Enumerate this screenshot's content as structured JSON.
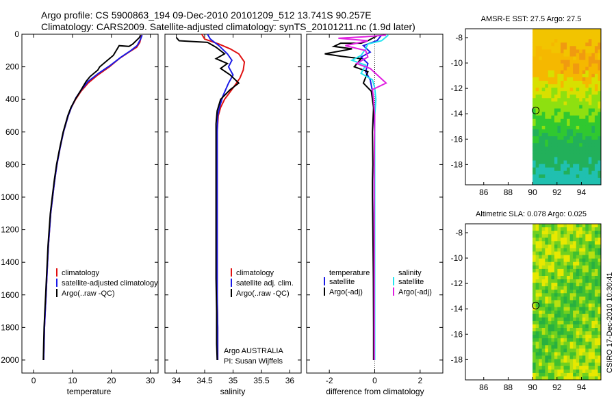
{
  "header": {
    "line1": "Argo profile: CS 5900863_194 09-Dec-2010 20101209_512 13.741S 90.257E",
    "line2": "Climatology: CARS2009. Satellite-adjusted climatology: synTS_20101211.nc (1.9d later)"
  },
  "colors": {
    "climatology": "#e01010",
    "satellite": "#1a1ae6",
    "argo": "#000000",
    "satellite_sal": "#22e5f0",
    "argo_sal": "#e020e0"
  },
  "chart_data": [
    {
      "id": "temperature",
      "type": "line",
      "xlabel": "temperature",
      "xlim": [
        -3,
        32
      ],
      "ylim": [
        0,
        2080
      ],
      "xticks": [
        "0",
        "10",
        "20",
        "30"
      ],
      "xtick_values": [
        0,
        10,
        20,
        30
      ],
      "yticks": [
        "0",
        "200",
        "400",
        "600",
        "800",
        "1000",
        "1200",
        "1400",
        "1600",
        "1800",
        "2000"
      ],
      "ytick_values": [
        0,
        200,
        400,
        600,
        800,
        1000,
        1200,
        1400,
        1600,
        1800,
        2000
      ],
      "legend": [
        "climatology",
        "satellite-adjusted climatology",
        "Argo(..raw -QC)"
      ],
      "series": [
        {
          "name": "climatology",
          "color": "#e01010",
          "points": [
            [
              27.8,
              5
            ],
            [
              27.6,
              20
            ],
            [
              27.3,
              50
            ],
            [
              26.5,
              80
            ],
            [
              24.5,
              110
            ],
            [
              22,
              150
            ],
            [
              19.5,
              200
            ],
            [
              16.5,
              250
            ],
            [
              14,
              300
            ],
            [
              12.2,
              350
            ],
            [
              10.8,
              400
            ],
            [
              9.7,
              450
            ],
            [
              8.9,
              500
            ],
            [
              7.7,
              600
            ],
            [
              6.8,
              700
            ],
            [
              6,
              800
            ],
            [
              5.4,
              900
            ],
            [
              4.9,
              1000
            ],
            [
              4.4,
              1100
            ],
            [
              4.1,
              1200
            ],
            [
              3.8,
              1300
            ],
            [
              3.6,
              1400
            ],
            [
              3.4,
              1500
            ],
            [
              3.2,
              1600
            ],
            [
              3,
              1700
            ],
            [
              2.8,
              1800
            ],
            [
              2.7,
              1900
            ],
            [
              2.6,
              2000
            ]
          ]
        },
        {
          "name": "satellite-adjusted climatology",
          "color": "#1a1ae6",
          "points": [
            [
              27.9,
              5
            ],
            [
              27.5,
              30
            ],
            [
              26.6,
              70
            ],
            [
              25,
              100
            ],
            [
              22.5,
              140
            ],
            [
              19.8,
              190
            ],
            [
              16.7,
              240
            ],
            [
              14,
              290
            ],
            [
              12.3,
              340
            ],
            [
              10.9,
              390
            ],
            [
              9.7,
              450
            ],
            [
              8.9,
              500
            ],
            [
              7.7,
              600
            ],
            [
              6.8,
              700
            ],
            [
              6,
              800
            ],
            [
              5.4,
              900
            ],
            [
              4.9,
              1000
            ],
            [
              4.4,
              1100
            ],
            [
              4.1,
              1200
            ],
            [
              3.8,
              1300
            ],
            [
              3.6,
              1400
            ],
            [
              3.4,
              1500
            ],
            [
              3.2,
              1600
            ],
            [
              3,
              1700
            ],
            [
              2.8,
              1800
            ],
            [
              2.7,
              1900
            ],
            [
              2.6,
              2000
            ]
          ]
        },
        {
          "name": "Argo(..raw -QC)",
          "color": "#000000",
          "points": [
            [
              27.5,
              5
            ],
            [
              27.2,
              20
            ],
            [
              25.5,
              60
            ],
            [
              24.5,
              75
            ],
            [
              22,
              70
            ],
            [
              21.5,
              90
            ],
            [
              20.5,
              130
            ],
            [
              17,
              200
            ],
            [
              16.5,
              220
            ],
            [
              14.5,
              260
            ],
            [
              13.5,
              290
            ],
            [
              12,
              350
            ],
            [
              10.7,
              400
            ],
            [
              9.6,
              450
            ],
            [
              8.8,
              500
            ],
            [
              7.6,
              600
            ],
            [
              6.7,
              700
            ],
            [
              5.9,
              800
            ],
            [
              5.3,
              900
            ],
            [
              4.8,
              1000
            ],
            [
              4.3,
              1100
            ],
            [
              4,
              1200
            ],
            [
              3.7,
              1300
            ],
            [
              3.5,
              1400
            ],
            [
              3.3,
              1500
            ],
            [
              3.1,
              1600
            ],
            [
              2.9,
              1700
            ],
            [
              2.7,
              1800
            ],
            [
              2.6,
              1900
            ],
            [
              2.5,
              2000
            ]
          ]
        }
      ]
    },
    {
      "id": "salinity",
      "type": "line",
      "xlabel": "salinity",
      "xlim": [
        33.8,
        36.2
      ],
      "ylim": [
        0,
        2080
      ],
      "xticks": [
        "34",
        "34.5",
        "35",
        "35.5",
        "36"
      ],
      "xtick_values": [
        34,
        34.5,
        35,
        35.5,
        36
      ],
      "legend": [
        "climatology",
        "satellite adj. clim.",
        "Argo(..raw -QC)"
      ],
      "annotation": [
        "Argo AUSTRALIA",
        "PI: Susan Wijffels"
      ],
      "series": [
        {
          "name": "climatology",
          "color": "#e01010",
          "points": [
            [
              34.45,
              0
            ],
            [
              34.5,
              30
            ],
            [
              34.75,
              60
            ],
            [
              34.95,
              90
            ],
            [
              35.1,
              120
            ],
            [
              35.2,
              170
            ],
            [
              35.18,
              220
            ],
            [
              35.12,
              270
            ],
            [
              35,
              330
            ],
            [
              34.85,
              400
            ],
            [
              34.78,
              450
            ],
            [
              34.74,
              500
            ],
            [
              34.72,
              600
            ],
            [
              34.72,
              800
            ],
            [
              34.72,
              1000
            ],
            [
              34.72,
              1200
            ],
            [
              34.72,
              1400
            ],
            [
              34.72,
              1600
            ],
            [
              34.73,
              1800
            ],
            [
              34.73,
              2000
            ]
          ]
        },
        {
          "name": "satellite adj. clim.",
          "color": "#1a1ae6",
          "points": [
            [
              34.55,
              0
            ],
            [
              34.6,
              30
            ],
            [
              34.75,
              70
            ],
            [
              34.9,
              120
            ],
            [
              34.98,
              160
            ],
            [
              34.92,
              200
            ],
            [
              35.0,
              250
            ],
            [
              34.92,
              300
            ],
            [
              34.82,
              380
            ],
            [
              34.76,
              450
            ],
            [
              34.73,
              500
            ],
            [
              34.72,
              600
            ],
            [
              34.72,
              800
            ],
            [
              34.72,
              1000
            ],
            [
              34.72,
              1200
            ],
            [
              34.72,
              1400
            ],
            [
              34.72,
              1600
            ],
            [
              34.73,
              1800
            ],
            [
              34.73,
              2000
            ]
          ]
        },
        {
          "name": "Argo(..raw -QC)",
          "color": "#000000",
          "points": [
            [
              34.0,
              20
            ],
            [
              34.05,
              40
            ],
            [
              34.3,
              45
            ],
            [
              34.55,
              50
            ],
            [
              34.7,
              80
            ],
            [
              34.85,
              120
            ],
            [
              34.7,
              150
            ],
            [
              34.9,
              180
            ],
            [
              34.78,
              210
            ],
            [
              34.95,
              250
            ],
            [
              35.1,
              300
            ],
            [
              34.95,
              340
            ],
            [
              34.78,
              400
            ],
            [
              34.72,
              470
            ],
            [
              34.7,
              550
            ],
            [
              34.7,
              700
            ],
            [
              34.7,
              900
            ],
            [
              34.7,
              1100
            ],
            [
              34.7,
              1300
            ],
            [
              34.7,
              1500
            ],
            [
              34.71,
              1700
            ],
            [
              34.71,
              1900
            ],
            [
              34.72,
              2000
            ]
          ]
        }
      ]
    },
    {
      "id": "difference",
      "type": "line",
      "xlabel": "difference from climatology",
      "xlim": [
        -3,
        3
      ],
      "ylim": [
        0,
        2080
      ],
      "xticks": [
        "-2",
        "0",
        "2"
      ],
      "xtick_values": [
        -2,
        0,
        2
      ],
      "legend_headers": [
        "temperature",
        "salinity"
      ],
      "legend": [
        "satellite",
        "Argo(-adj)",
        "satellite",
        "Argo(-adj)"
      ],
      "series": [
        {
          "name": "temperature satellite",
          "color": "#1a1ae6",
          "points": [
            [
              0.3,
              5
            ],
            [
              0.1,
              40
            ],
            [
              -0.5,
              70
            ],
            [
              -0.2,
              110
            ],
            [
              -0.6,
              140
            ],
            [
              -0.3,
              180
            ],
            [
              -0.4,
              230
            ],
            [
              -0.2,
              280
            ],
            [
              -0.1,
              350
            ],
            [
              -0.05,
              450
            ],
            [
              0,
              600
            ],
            [
              -0.02,
              900
            ],
            [
              -0.02,
              1200
            ],
            [
              -0.02,
              1500
            ],
            [
              -0.02,
              1800
            ],
            [
              -0.02,
              2000
            ]
          ]
        },
        {
          "name": "temperature Argo(-adj)",
          "color": "#000000",
          "points": [
            [
              0.1,
              10
            ],
            [
              -0.3,
              40
            ],
            [
              -0.6,
              55
            ],
            [
              -1.5,
              55
            ],
            [
              -1.8,
              75
            ],
            [
              -1.0,
              90
            ],
            [
              -2.2,
              120
            ],
            [
              -1.5,
              135
            ],
            [
              -0.6,
              150
            ],
            [
              -0.9,
              200
            ],
            [
              -0.3,
              230
            ],
            [
              -0.5,
              300
            ],
            [
              -0.15,
              350
            ],
            [
              -0.05,
              450
            ],
            [
              -0.1,
              600
            ],
            [
              -0.08,
              800
            ],
            [
              -0.1,
              900
            ],
            [
              -0.1,
              1000
            ],
            [
              -0.08,
              1200
            ],
            [
              -0.06,
              1500
            ],
            [
              -0.05,
              1800
            ],
            [
              -0.05,
              2000
            ]
          ]
        },
        {
          "name": "salinity satellite",
          "color": "#22e5f0",
          "points": [
            [
              0.6,
              5
            ],
            [
              0.3,
              40
            ],
            [
              -0.3,
              60
            ],
            [
              -0.4,
              90
            ],
            [
              -0.6,
              130
            ],
            [
              -1.0,
              160
            ],
            [
              -0.4,
              190
            ],
            [
              -0.6,
              240
            ],
            [
              -0.1,
              280
            ],
            [
              0,
              330
            ],
            [
              0.05,
              400
            ],
            [
              0,
              500
            ],
            [
              0,
              800
            ],
            [
              0,
              1100
            ],
            [
              0,
              1400
            ],
            [
              0,
              1700
            ],
            [
              0,
              2000
            ]
          ]
        },
        {
          "name": "salinity Argo(-adj)",
          "color": "#e020e0",
          "points": [
            [
              0.5,
              5
            ],
            [
              -0.4,
              15
            ],
            [
              -1.6,
              25
            ],
            [
              -0.3,
              40
            ],
            [
              -0.8,
              55
            ],
            [
              -1.3,
              70
            ],
            [
              -0.4,
              100
            ],
            [
              -0.3,
              140
            ],
            [
              -0.8,
              180
            ],
            [
              -0.2,
              210
            ],
            [
              0.5,
              300
            ],
            [
              -0.1,
              340
            ],
            [
              -0.05,
              400
            ],
            [
              0,
              500
            ],
            [
              -0.02,
              800
            ],
            [
              -0.02,
              1100
            ],
            [
              -0.02,
              1400
            ],
            [
              -0.02,
              1700
            ],
            [
              -0.02,
              2000
            ]
          ]
        }
      ]
    }
  ],
  "map_sst": {
    "title": "AMSR-E SST: 27.5 Argo: 27.5",
    "xticks": [
      "86",
      "88",
      "90",
      "92",
      "94"
    ],
    "xtick_values": [
      86,
      88,
      90,
      92,
      94
    ],
    "yticks": [
      "-8",
      "-10",
      "-12",
      "-14",
      "-16",
      "-18"
    ],
    "ytick_values": [
      -8,
      -10,
      -12,
      -14,
      -16,
      -18
    ],
    "xlim": [
      84.5,
      95.6
    ],
    "ylim": [
      -19.6,
      -7.3
    ],
    "data_lon_start": 90,
    "argo": [
      90.257,
      -13.741
    ]
  },
  "map_sla": {
    "title": "Altimetric SLA: 0.078 Argo: 0.025",
    "xticks": [
      "86",
      "88",
      "90",
      "92",
      "94"
    ],
    "xtick_values": [
      86,
      88,
      90,
      92,
      94
    ],
    "yticks": [
      "-8",
      "-10",
      "-12",
      "-14",
      "-16",
      "-18"
    ],
    "ytick_values": [
      -8,
      -10,
      -12,
      -14,
      -16,
      -18
    ],
    "xlim": [
      84.5,
      95.6
    ],
    "ylim": [
      -19.6,
      -7.3
    ],
    "data_lon_start": 90,
    "argo": [
      90.257,
      -13.741
    ]
  },
  "side_label": "CSIRO 17-Dec-2010 10:30:41"
}
